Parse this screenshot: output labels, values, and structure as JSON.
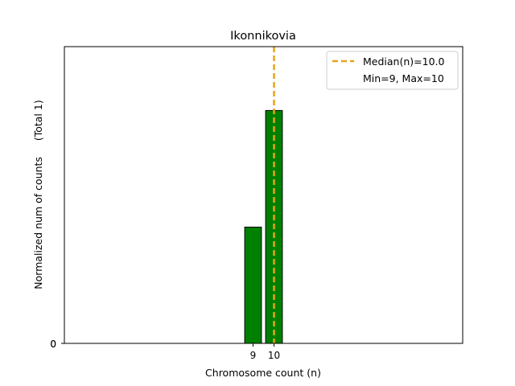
{
  "chart_data": {
    "type": "bar",
    "title": "Ikonnikovia",
    "xlabel": "Chromosome count (n)",
    "ylabel": "Normalized num of counts     (Total 1)",
    "categories": [
      9,
      10
    ],
    "values": [
      0.333,
      0.667
    ],
    "xlim": [
      0,
      19
    ],
    "ylim": [
      0,
      0.85
    ],
    "xticks": [
      "9",
      "10"
    ],
    "yticks": [
      "0",
      "0"
    ],
    "bar_color": "#008000",
    "bar_edge_color": "#000000",
    "median": 10.0,
    "median_color": "#e8a317",
    "legend": {
      "position": "top-right",
      "median_label": "Median(n)=10.0",
      "range_label": "Min=9, Max=10"
    }
  }
}
